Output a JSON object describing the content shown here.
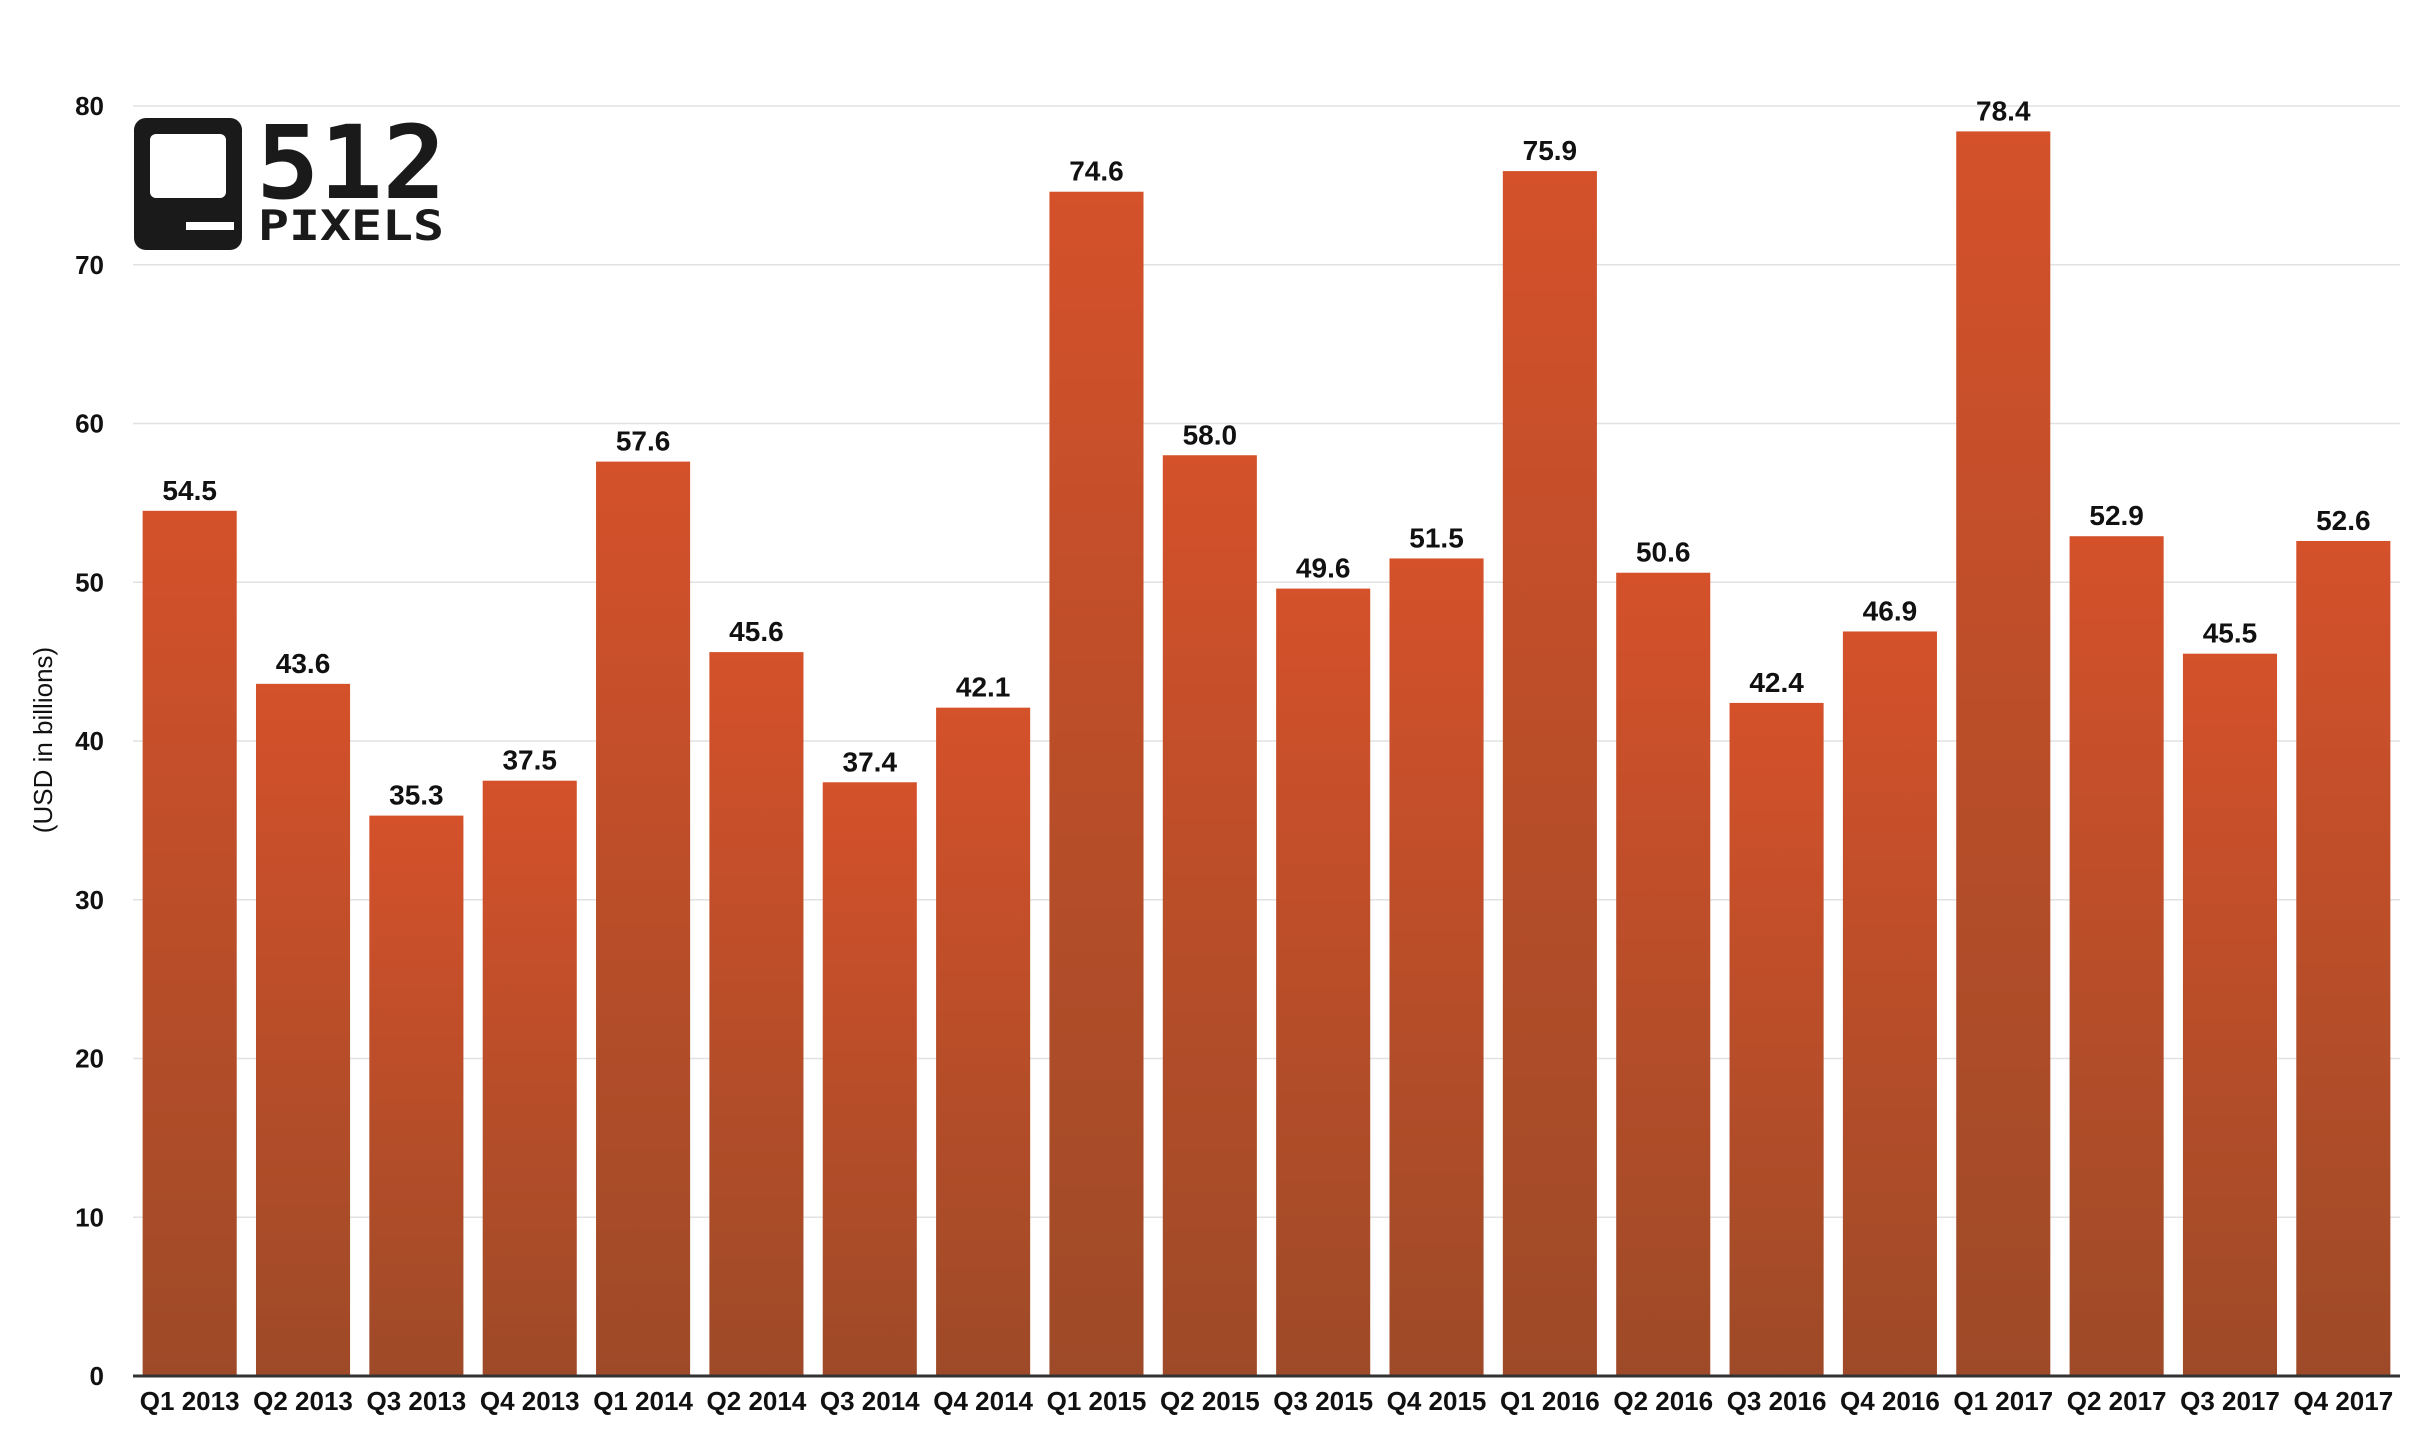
{
  "chart_data": {
    "type": "bar",
    "title": "",
    "xlabel": "",
    "ylabel": "(USD in billions)",
    "ylim": [
      0,
      80
    ],
    "yticks": [
      0,
      10,
      20,
      30,
      40,
      50,
      60,
      70,
      80
    ],
    "grid": true,
    "legend": "none",
    "bar_color_top": "#d4512a",
    "bar_color_bottom": "#9e4a28",
    "categories": [
      "Q1 2013",
      "Q2 2013",
      "Q3 2013",
      "Q4 2013",
      "Q1 2014",
      "Q2 2014",
      "Q3 2014",
      "Q4 2014",
      "Q1 2015",
      "Q2 2015",
      "Q3 2015",
      "Q4 2015",
      "Q1 2016",
      "Q2 2016",
      "Q3 2016",
      "Q4 2016",
      "Q1 2017",
      "Q2 2017",
      "Q3 2017",
      "Q4 2017"
    ],
    "values": [
      54.5,
      43.6,
      35.3,
      37.5,
      57.6,
      45.6,
      37.4,
      42.1,
      74.6,
      58.0,
      49.6,
      51.5,
      75.9,
      50.6,
      42.4,
      46.9,
      78.4,
      52.9,
      45.5,
      52.6
    ],
    "value_labels": [
      "54.5",
      "43.6",
      "35.3",
      "37.5",
      "57.6",
      "45.6",
      "37.4",
      "42.1",
      "74.6",
      "58.0",
      "49.6",
      "51.5",
      "75.9",
      "50.6",
      "42.4",
      "46.9",
      "78.4",
      "52.9",
      "45.5",
      "52.6"
    ]
  },
  "logo": {
    "number": "512",
    "word": "PIXELS",
    "color": "#1a1a1a"
  }
}
